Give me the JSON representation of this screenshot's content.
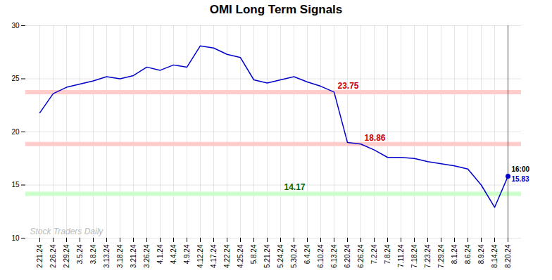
{
  "chart_data": {
    "type": "line",
    "title": "OMI Long Term Signals",
    "categories": [
      "2.21.24",
      "2.26.24",
      "2.29.24",
      "3.5.24",
      "3.8.24",
      "3.13.24",
      "3.18.24",
      "3.21.24",
      "3.26.24",
      "4.1.24",
      "4.4.24",
      "4.9.24",
      "4.12.24",
      "4.17.24",
      "4.22.24",
      "4.25.24",
      "5.8.24",
      "5.21.24",
      "5.24.24",
      "5.30.24",
      "6.4.24",
      "6.10.24",
      "6.13.24",
      "6.20.24",
      "6.26.24",
      "7.2.24",
      "7.8.24",
      "7.11.24",
      "7.18.24",
      "7.23.24",
      "7.29.24",
      "8.1.24",
      "8.6.24",
      "8.9.24",
      "8.14.24",
      "8.20.24"
    ],
    "values": [
      21.8,
      23.6,
      24.2,
      24.5,
      24.8,
      25.2,
      25.0,
      25.3,
      26.1,
      25.8,
      26.3,
      26.1,
      28.1,
      27.9,
      27.3,
      27.0,
      24.9,
      24.6,
      24.9,
      25.2,
      24.7,
      24.3,
      23.75,
      19.0,
      18.86,
      18.3,
      17.6,
      17.6,
      17.5,
      17.2,
      17.0,
      16.8,
      16.5,
      15.0,
      12.9,
      15.83
    ],
    "color": "#0000cc",
    "ylim": [
      10,
      30
    ],
    "yticks": [
      10,
      15,
      20,
      25,
      30
    ],
    "grid": true,
    "bands": [
      {
        "value": 23.75,
        "label": "23.75",
        "color": "#cc0000",
        "band_color": "#ffcccc",
        "x": "6.13.24"
      },
      {
        "value": 18.86,
        "label": "18.86",
        "color": "#cc0000",
        "band_color": "#ffcccc",
        "x": "6.26.24"
      },
      {
        "value": 14.17,
        "label": "14.17",
        "color": "#006600",
        "band_color": "#ccffcc",
        "x": "5.24.24"
      }
    ],
    "last_point": {
      "marker": "circle",
      "rule_color": "#444444",
      "annotations": [
        {
          "text": "16:00",
          "color": "#000000"
        },
        {
          "text": "15.83",
          "color": "#0000cc"
        }
      ]
    },
    "watermark": {
      "text": "Stock Traders Daily",
      "color": "#bbbbbb"
    }
  }
}
